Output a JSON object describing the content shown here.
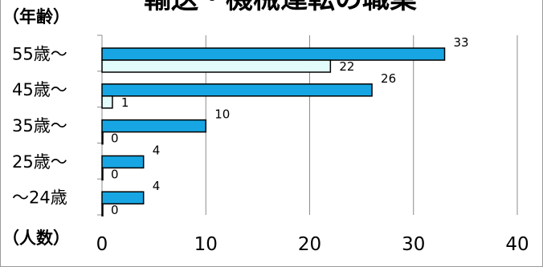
{
  "chart_data": {
    "type": "bar",
    "orientation": "horizontal",
    "title": "輸送・機械運転の職業",
    "ylabel": "（年齢）",
    "xlabel": "（人数）",
    "categories": [
      "55歳～",
      "45歳～",
      "35歳～",
      "25歳～",
      "～24歳"
    ],
    "series": [
      {
        "values": [
          33,
          26,
          10,
          4,
          4
        ],
        "color": "#17a6e3"
      },
      {
        "values": [
          22,
          1,
          0,
          0,
          0
        ],
        "color": "#e2fbfb"
      }
    ],
    "xlim": [
      0,
      40
    ],
    "xticks": [
      "0",
      "10",
      "20",
      "30",
      "40"
    ],
    "grid": true,
    "legend": "none"
  }
}
